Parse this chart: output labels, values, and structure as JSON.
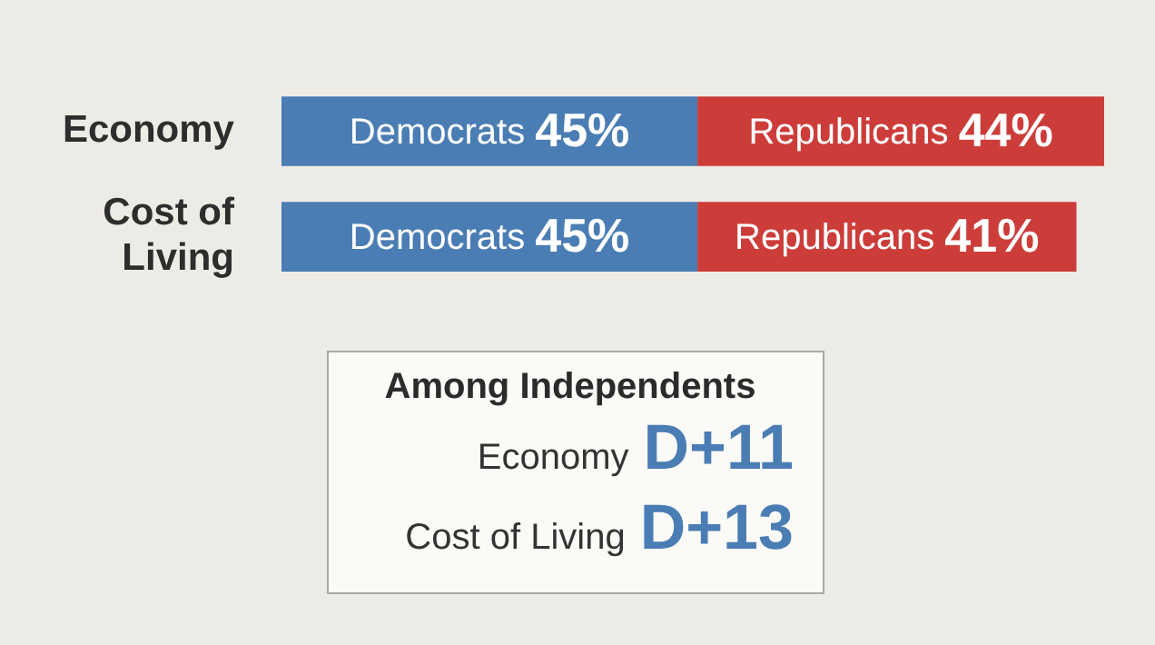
{
  "chart_data": {
    "type": "bar",
    "orientation": "horizontal",
    "stacked": true,
    "legend": false,
    "categories": [
      "Economy",
      "Cost of Living"
    ],
    "series": [
      {
        "name": "Democrats",
        "color": "#4a7db3",
        "values": [
          45,
          45
        ],
        "value_labels": [
          "45%",
          "45%"
        ]
      },
      {
        "name": "Republicans",
        "color": "#cc3d3a",
        "values": [
          44,
          41
        ],
        "value_labels": [
          "44%",
          "41%"
        ]
      }
    ],
    "annotations": [
      "Among Independents",
      "Economy",
      "D+11",
      "Cost of Living",
      "D+13"
    ]
  }
}
